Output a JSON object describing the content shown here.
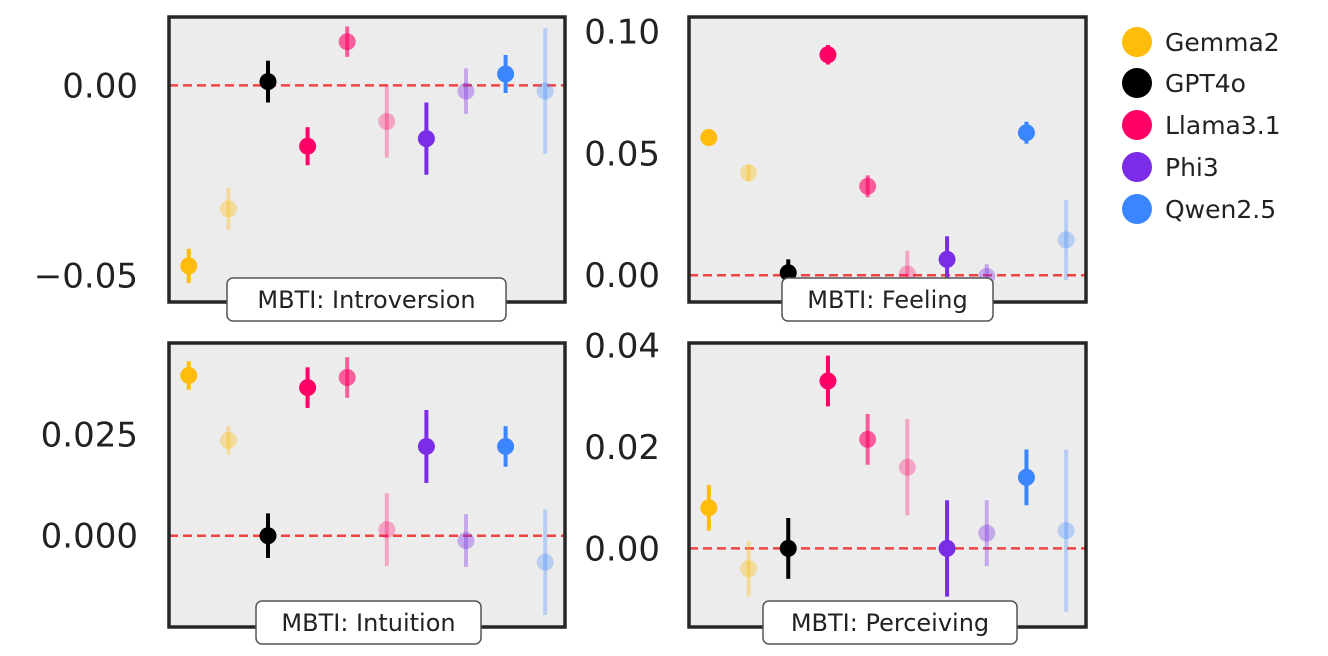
{
  "legend": [
    {
      "name": "Gemma2",
      "color": "#ffbc0a"
    },
    {
      "name": "GPT4o",
      "color": "#000000"
    },
    {
      "name": "Llama3.1",
      "color": "#ff0066"
    },
    {
      "name": "Phi3",
      "color": "#7b2ce6"
    },
    {
      "name": "Qwen2.5",
      "color": "#3a86ff"
    }
  ],
  "chart_data": [
    {
      "type": "scatter",
      "title": "MBTI: Introversion",
      "ylim": [
        -0.057,
        0.018
      ],
      "y_ticks": [
        0.0,
        -0.05
      ],
      "y_tick_labels": [
        "0.00",
        "−0.05"
      ],
      "reference_line": 0,
      "points": [
        {
          "series": "Gemma2",
          "y": -0.0475,
          "err": 0.0045,
          "alpha": 1.0
        },
        {
          "series": "Gemma2",
          "y": -0.0325,
          "err": 0.0055,
          "alpha": 0.35
        },
        {
          "series": "GPT4o",
          "y": 0.001,
          "err": 0.0055,
          "alpha": 1.0
        },
        {
          "series": "Llama3.1",
          "y": -0.016,
          "err": 0.005,
          "alpha": 1.0
        },
        {
          "series": "Llama3.1",
          "y": 0.0115,
          "err": 0.004,
          "alpha": 0.6
        },
        {
          "series": "Llama3.1",
          "y": -0.0095,
          "err": 0.0095,
          "alpha": 0.3
        },
        {
          "series": "Phi3",
          "y": -0.014,
          "err": 0.0095,
          "alpha": 1.0
        },
        {
          "series": "Phi3",
          "y": -0.0015,
          "err": 0.006,
          "alpha": 0.35
        },
        {
          "series": "Qwen2.5",
          "y": 0.003,
          "err": 0.005,
          "alpha": 1.0
        },
        {
          "series": "Qwen2.5",
          "y": -0.0015,
          "err": 0.0165,
          "alpha": 0.3
        }
      ]
    },
    {
      "type": "scatter",
      "title": "MBTI: Feeling",
      "ylim": [
        -0.011,
        0.106
      ],
      "y_ticks": [
        0.1,
        0.05,
        0.0
      ],
      "y_tick_labels": [
        "0.10",
        "0.05",
        "0.00"
      ],
      "reference_line": 0,
      "points": [
        {
          "series": "Gemma2",
          "y": 0.0565,
          "err": 0.0035,
          "alpha": 1.0
        },
        {
          "series": "Gemma2",
          "y": 0.042,
          "err": 0.0035,
          "alpha": 0.35
        },
        {
          "series": "GPT4o",
          "y": 0.001,
          "err": 0.0055,
          "alpha": 1.0
        },
        {
          "series": "Llama3.1",
          "y": 0.0905,
          "err": 0.004,
          "alpha": 1.0
        },
        {
          "series": "Llama3.1",
          "y": 0.0365,
          "err": 0.0045,
          "alpha": 0.6
        },
        {
          "series": "Llama3.1",
          "y": 0.0005,
          "err": 0.0095,
          "alpha": 0.3
        },
        {
          "series": "Phi3",
          "y": 0.0065,
          "err": 0.0095,
          "alpha": 1.0
        },
        {
          "series": "Phi3",
          "y": -0.0005,
          "err": 0.005,
          "alpha": 0.35
        },
        {
          "series": "Qwen2.5",
          "y": 0.0585,
          "err": 0.0045,
          "alpha": 1.0
        },
        {
          "series": "Qwen2.5",
          "y": 0.0145,
          "err": 0.0165,
          "alpha": 0.3
        }
      ]
    },
    {
      "type": "scatter",
      "title": "MBTI: Intuition",
      "ylim": [
        -0.0225,
        0.0475
      ],
      "y_ticks": [
        0.025,
        0.0
      ],
      "y_tick_labels": [
        "0.025",
        "0.000"
      ],
      "reference_line": 0,
      "points": [
        {
          "series": "Gemma2",
          "y": 0.0395,
          "err": 0.0035,
          "alpha": 1.0
        },
        {
          "series": "Gemma2",
          "y": 0.0235,
          "err": 0.0035,
          "alpha": 0.35
        },
        {
          "series": "GPT4o",
          "y": 0.0,
          "err": 0.0055,
          "alpha": 1.0
        },
        {
          "series": "Llama3.1",
          "y": 0.0365,
          "err": 0.005,
          "alpha": 1.0
        },
        {
          "series": "Llama3.1",
          "y": 0.039,
          "err": 0.005,
          "alpha": 0.6
        },
        {
          "series": "Llama3.1",
          "y": 0.0015,
          "err": 0.009,
          "alpha": 0.3
        },
        {
          "series": "Phi3",
          "y": 0.022,
          "err": 0.009,
          "alpha": 1.0
        },
        {
          "series": "Phi3",
          "y": -0.0012,
          "err": 0.0065,
          "alpha": 0.35
        },
        {
          "series": "Qwen2.5",
          "y": 0.022,
          "err": 0.005,
          "alpha": 1.0
        },
        {
          "series": "Qwen2.5",
          "y": -0.0065,
          "err": 0.013,
          "alpha": 0.3
        }
      ]
    },
    {
      "type": "scatter",
      "title": "MBTI: Perceiving",
      "ylim": [
        -0.0155,
        0.0405
      ],
      "y_ticks": [
        0.04,
        0.02,
        0.0
      ],
      "y_tick_labels": [
        "0.04",
        "0.02",
        "0.00"
      ],
      "reference_line": 0,
      "points": [
        {
          "series": "Gemma2",
          "y": 0.008,
          "err": 0.0045,
          "alpha": 1.0
        },
        {
          "series": "Gemma2",
          "y": -0.004,
          "err": 0.0055,
          "alpha": 0.35
        },
        {
          "series": "GPT4o",
          "y": 0.0,
          "err": 0.006,
          "alpha": 1.0
        },
        {
          "series": "Llama3.1",
          "y": 0.033,
          "err": 0.005,
          "alpha": 1.0
        },
        {
          "series": "Llama3.1",
          "y": 0.0215,
          "err": 0.005,
          "alpha": 0.6
        },
        {
          "series": "Llama3.1",
          "y": 0.016,
          "err": 0.0095,
          "alpha": 0.3
        },
        {
          "series": "Phi3",
          "y": 0.0,
          "err": 0.0095,
          "alpha": 1.0
        },
        {
          "series": "Phi3",
          "y": 0.003,
          "err": 0.0065,
          "alpha": 0.35
        },
        {
          "series": "Qwen2.5",
          "y": 0.014,
          "err": 0.0055,
          "alpha": 1.0
        },
        {
          "series": "Qwen2.5",
          "y": 0.0035,
          "err": 0.016,
          "alpha": 0.3
        }
      ]
    }
  ]
}
